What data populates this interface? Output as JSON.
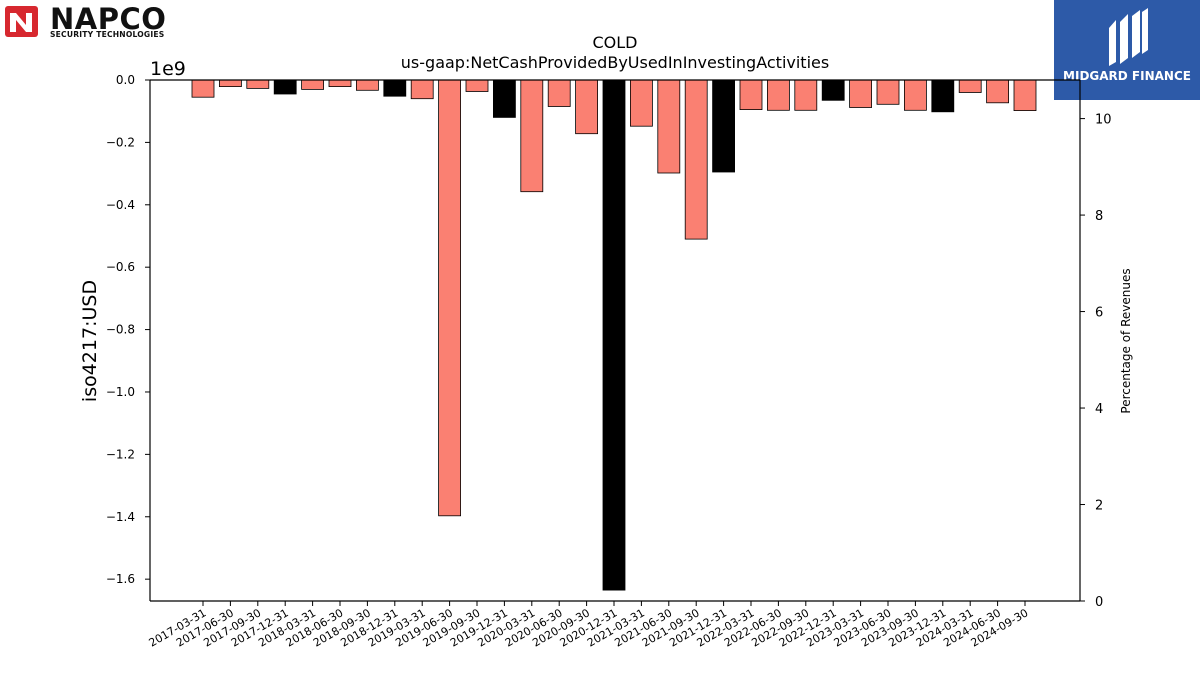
{
  "logos": {
    "left": {
      "name": "NAPCO",
      "tagline": "SECURITY TECHNOLOGIES",
      "color": "#d7282f"
    },
    "right": {
      "name": "MIDGARD FINANCE",
      "color": "#2d5aa8"
    }
  },
  "chart_data": {
    "type": "bar",
    "title": "COLD",
    "subtitle": "us-gaap:NetCashProvidedByUsedInInvestingActivities",
    "ylabel": "iso4217:USD",
    "y_offset_label": "1e9",
    "y2label": "Percentage of Revenues",
    "ylim": [
      -1.67,
      0.0
    ],
    "y2lim": [
      0,
      10.8
    ],
    "y_ticks": [
      "0.0",
      "-0.2",
      "-0.4",
      "-0.6",
      "-0.8",
      "-1.0",
      "-1.2",
      "-1.4",
      "-1.6"
    ],
    "y2_ticks": [
      "0",
      "2",
      "4",
      "6",
      "8",
      "10"
    ],
    "grid": false,
    "colors": {
      "default": "#fa8072",
      "highlight": "#000000"
    },
    "categories": [
      "2017-03-31",
      "2017-06-30",
      "2017-09-30",
      "2017-12-31",
      "2018-03-31",
      "2018-06-30",
      "2018-09-30",
      "2018-12-31",
      "2019-03-31",
      "2019-06-30",
      "2019-09-30",
      "2019-12-31",
      "2020-03-31",
      "2020-06-30",
      "2020-09-30",
      "2020-12-31",
      "2021-03-31",
      "2021-06-30",
      "2021-09-30",
      "2021-12-31",
      "2022-03-31",
      "2022-06-30",
      "2022-09-30",
      "2022-12-31",
      "2023-03-31",
      "2023-06-30",
      "2023-09-30",
      "2023-12-31",
      "2024-03-31",
      "2024-06-30",
      "2024-09-30"
    ],
    "values": [
      -0.055,
      -0.021,
      -0.027,
      -0.045,
      -0.03,
      -0.021,
      -0.033,
      -0.052,
      -0.06,
      -1.397,
      -0.037,
      -0.12,
      -0.358,
      -0.085,
      -0.172,
      -1.635,
      -0.148,
      -0.298,
      -0.51,
      -0.295,
      -0.095,
      -0.097,
      -0.097,
      -0.065,
      -0.088,
      -0.078,
      -0.097,
      -0.102,
      -0.04,
      -0.073,
      -0.098
    ],
    "highlight": [
      false,
      false,
      false,
      true,
      false,
      false,
      false,
      true,
      false,
      false,
      false,
      true,
      false,
      false,
      false,
      true,
      false,
      false,
      false,
      true,
      false,
      false,
      false,
      true,
      false,
      false,
      false,
      true,
      false,
      false,
      false
    ]
  }
}
